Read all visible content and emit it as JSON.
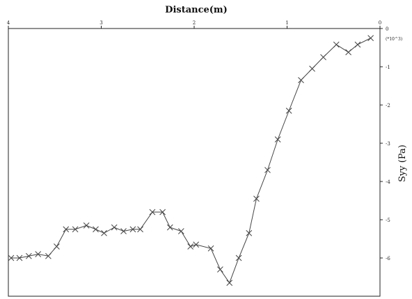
{
  "chart_data": {
    "type": "line",
    "title": "Distance(m)",
    "ylabel": "Syy (Pa)",
    "xlabel": "",
    "y_multiplier_label": "(*10^3)",
    "x_reversed": true,
    "x_axis_position": "top",
    "y_axis_position": "right",
    "xlim": [
      0,
      4
    ],
    "ylim": [
      -7,
      0
    ],
    "x_ticks": [
      {
        "value": 4,
        "label": "4"
      },
      {
        "value": 3,
        "label": "3"
      },
      {
        "value": 2,
        "label": "2"
      },
      {
        "value": 1,
        "label": "1"
      },
      {
        "value": 0,
        "label": "0"
      }
    ],
    "y_ticks": [
      {
        "value": -6,
        "label": "-6"
      },
      {
        "value": -5,
        "label": "-5"
      },
      {
        "value": -4,
        "label": "-4"
      },
      {
        "value": -3,
        "label": "-3"
      },
      {
        "value": -2,
        "label": "-2"
      },
      {
        "value": -1,
        "label": "-1"
      },
      {
        "value": 0,
        "label": "0"
      }
    ],
    "grid": false,
    "marker": "x",
    "series": [
      {
        "x": [
          0.1,
          0.24,
          0.34,
          0.47,
          0.61,
          0.73,
          0.85,
          0.98,
          1.1,
          1.21,
          1.33,
          1.41,
          1.52,
          1.62,
          1.72,
          1.82,
          1.98,
          2.04,
          2.14,
          2.26,
          2.34,
          2.45,
          2.58,
          2.66,
          2.76,
          2.86,
          2.97,
          3.06,
          3.16,
          3.28,
          3.38,
          3.48,
          3.57,
          3.68,
          3.78,
          3.88,
          3.97
        ],
        "y": [
          -0.25,
          -0.42,
          -0.62,
          -0.42,
          -0.75,
          -1.05,
          -1.35,
          -2.15,
          -2.9,
          -3.7,
          -4.45,
          -5.35,
          -6.0,
          -6.65,
          -6.3,
          -5.75,
          -5.65,
          -5.7,
          -5.3,
          -5.2,
          -4.8,
          -4.8,
          -5.25,
          -5.25,
          -5.3,
          -5.2,
          -5.35,
          -5.25,
          -5.15,
          -5.25,
          -5.25,
          -5.7,
          -5.95,
          -5.9,
          -5.95,
          -6.0,
          -6.0
        ]
      }
    ]
  }
}
